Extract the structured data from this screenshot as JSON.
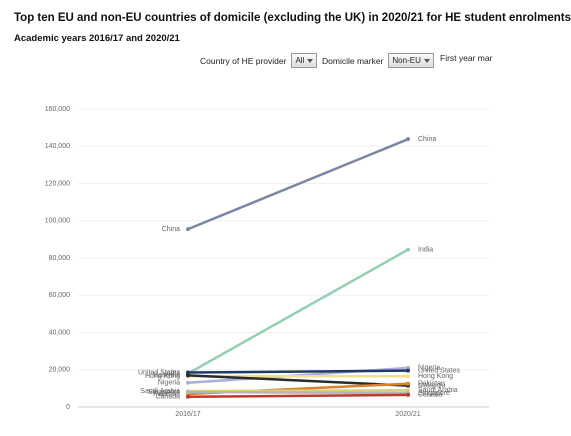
{
  "chart_data": {
    "type": "line",
    "title": "Top ten EU and non-EU countries of domicile (excluding the UK) in 2020/21 for HE student enrolments",
    "subtitle": "Academic years 2016/17 and 2020/21",
    "categories": [
      "2016/17",
      "2020/21"
    ],
    "ylim": [
      0,
      160000
    ],
    "yticks": [
      {
        "value": 0,
        "label": "0"
      },
      {
        "value": 20000,
        "label": "20,000"
      },
      {
        "value": 40000,
        "label": "40,000"
      },
      {
        "value": 60000,
        "label": "60,000"
      },
      {
        "value": 80000,
        "label": "80,000"
      },
      {
        "value": 100000,
        "label": "100,000"
      },
      {
        "value": 120000,
        "label": "120,000"
      },
      {
        "value": 140000,
        "label": "140,000"
      },
      {
        "value": 160000,
        "label": "160,000"
      }
    ],
    "series": [
      {
        "name": "China",
        "color": "#7a86a3",
        "values": [
          95500,
          143800
        ]
      },
      {
        "name": "India",
        "color": "#93cfb2",
        "values": [
          18000,
          84500
        ]
      },
      {
        "name": "Nigeria",
        "color": "#a9aedb",
        "values": [
          13000,
          21000
        ]
      },
      {
        "name": "United States",
        "color": "#1f3a68",
        "values": [
          18500,
          19500
        ]
      },
      {
        "name": "Hong Kong",
        "color": "#f0e08c",
        "values": [
          16500,
          16500
        ]
      },
      {
        "name": "Malaysia",
        "color": "#2b2b2b",
        "values": [
          17000,
          11500
        ]
      },
      {
        "name": "Pakistan",
        "color": "#d9822b",
        "values": [
          7000,
          12500
        ]
      },
      {
        "name": "Saudi Arabia",
        "color": "#d7d27a",
        "values": [
          8500,
          9000
        ]
      },
      {
        "name": "Singapore",
        "color": "#b5b5b5",
        "values": [
          8000,
          7500
        ]
      },
      {
        "name": "Canada",
        "color": "#c0392b",
        "values": [
          5500,
          6500
        ]
      }
    ]
  },
  "controls": [
    {
      "label": "Country of HE provider",
      "value": "All"
    },
    {
      "label": "Domicile marker",
      "value": "Non-EU"
    },
    {
      "label": "First year mar"
    }
  ]
}
